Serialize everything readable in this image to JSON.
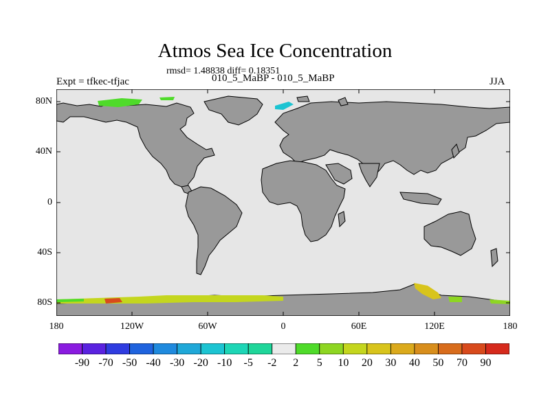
{
  "figure": {
    "title": "Atmos Sea Ice Concentration",
    "stats": "rmsd= 1.48838 diff= 0.18351",
    "experiment": "Expt = tfkec-tfjac",
    "period": "010_5_MaBP - 010_5_MaBP",
    "season": "JJA"
  },
  "map": {
    "projection": "cylindrical equidistant",
    "lon_range": [
      -180,
      180
    ],
    "lat_range": [
      -90,
      90
    ],
    "ocean_color": "#e6e6e6",
    "land_color": "#999999",
    "lat_ticks": [
      "80N",
      "40N",
      "0",
      "40S",
      "80S"
    ],
    "lon_ticks": [
      "180",
      "120W",
      "60W",
      "0",
      "60E",
      "120E",
      "180"
    ]
  },
  "colorbar": {
    "labels": [
      "-90",
      "-70",
      "-50",
      "-40",
      "-30",
      "-20",
      "-10",
      "-5",
      "-2",
      "2",
      "5",
      "10",
      "20",
      "30",
      "40",
      "50",
      "70",
      "90"
    ],
    "colors": [
      "#8a1be0",
      "#5a22e0",
      "#2f3ce0",
      "#1f63de",
      "#1f8ade",
      "#1fa8d8",
      "#1cc4d2",
      "#1dd6b6",
      "#1fd69a",
      "#ebebeb",
      "#4fdb2a",
      "#8ed622",
      "#c4d61e",
      "#d8c41c",
      "#dbaa1c",
      "#d88e1c",
      "#d86c1c",
      "#d84a1c",
      "#d62a1c"
    ]
  }
}
